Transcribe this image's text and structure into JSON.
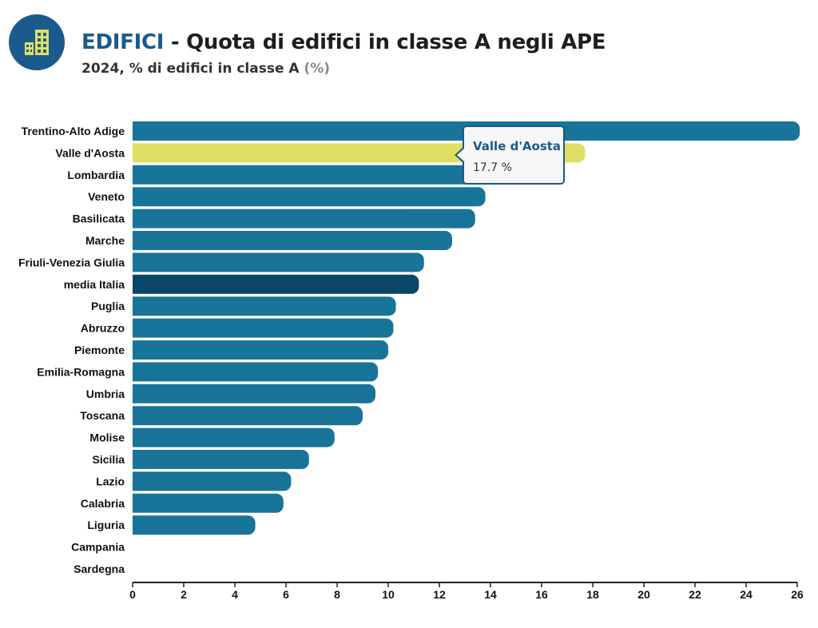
{
  "header": {
    "category": "EDIFICI",
    "title_rest": " - Quota di edifici in classe A negli APE",
    "subtitle": "2024, % di edifici in classe A ",
    "unit": "(%)",
    "logo_icon": "buildings-icon"
  },
  "tooltip": {
    "name": "Valle d'Aosta",
    "value": "17.7 %"
  },
  "colors": {
    "bar": "#187499",
    "highlight": "#e1df62",
    "average": "#0b4569",
    "brand": "#1b5a8c"
  },
  "chart_data": {
    "type": "bar",
    "orientation": "horizontal",
    "categories": [
      "Trentino-Alto Adige",
      "Valle d'Aosta",
      "Lombardia",
      "Veneto",
      "Basilicata",
      "Marche",
      "Friuli-Venezia Giulia",
      "media Italia",
      "Puglia",
      "Abruzzo",
      "Piemonte",
      "Emilia-Romagna",
      "Umbria",
      "Toscana",
      "Molise",
      "Sicilia",
      "Lazio",
      "Calabria",
      "Liguria",
      "Campania",
      "Sardegna"
    ],
    "values": [
      26.1,
      17.7,
      13.9,
      13.8,
      13.4,
      12.5,
      11.4,
      11.2,
      10.3,
      10.2,
      10.0,
      9.6,
      9.5,
      9.0,
      7.9,
      6.9,
      6.2,
      5.9,
      4.8,
      0,
      0
    ],
    "highlighted": "Valle d'Aosta",
    "average_category": "media Italia",
    "xlim": [
      0,
      26
    ],
    "xticks": [
      0,
      2,
      4,
      6,
      8,
      10,
      12,
      14,
      16,
      18,
      20,
      22,
      24,
      26
    ],
    "grid": false
  }
}
